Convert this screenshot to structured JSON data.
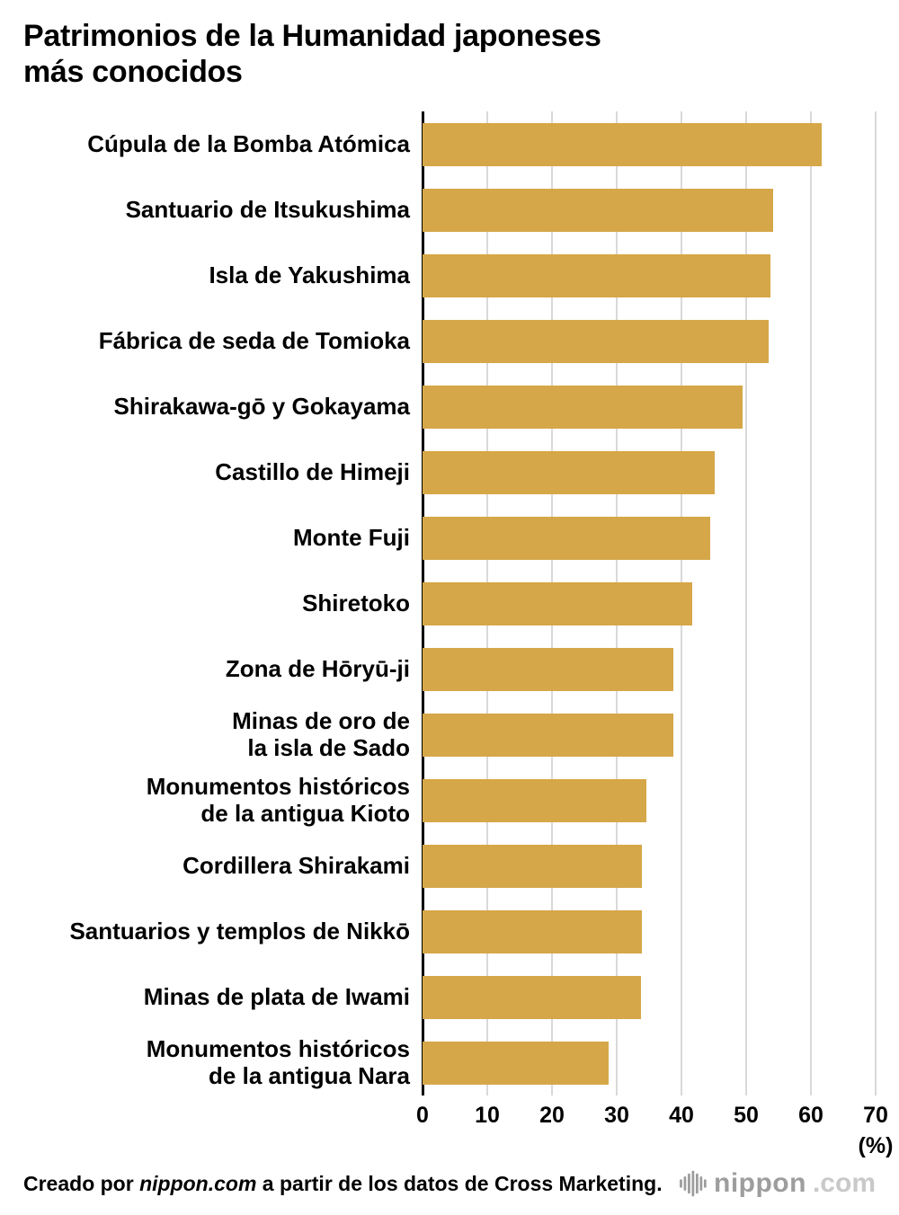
{
  "title": "Patrimonios de la Humanidad japoneses\nmás conocidos",
  "chart_data": {
    "type": "bar",
    "orientation": "horizontal",
    "title": "Patrimonios de la Humanidad japoneses más conocidos",
    "categories": [
      "Cúpula de la Bomba Atómica",
      "Santuario de Itsukushima",
      "Isla de Yakushima",
      "Fábrica de seda de Tomioka",
      "Shirakawa-gō y Gokayama",
      "Castillo de Himeji",
      "Monte Fuji",
      "Shiretoko",
      "Zona de Hōryū-ji",
      "Minas de oro de\nla isla de Sado",
      "Monumentos históricos\nde la antigua Kioto",
      "Cordillera Shirakami",
      "Santuarios y templos de Nikkō",
      "Minas de plata de Iwami",
      "Monumentos históricos\nde la antigua Nara"
    ],
    "values": [
      61.7,
      54.1,
      53.7,
      53.5,
      49.4,
      45.1,
      44.4,
      41.6,
      38.7,
      38.7,
      34.6,
      33.9,
      33.9,
      33.8,
      28.8
    ],
    "xlim": [
      0,
      70
    ],
    "xticks": [
      0,
      10,
      20,
      30,
      40,
      50,
      60,
      70
    ],
    "x_unit_label": "(%)",
    "bar_color": "#d5a748",
    "grid": true,
    "gridline_color": "#d9d9d9",
    "axis_color": "#000000"
  },
  "footer": {
    "prefix": "Creado por ",
    "brand": "nippon.com",
    "suffix": " a partir de los datos de Cross Marketing.",
    "logo_nippon": "nippon",
    "logo_com": ".com"
  }
}
